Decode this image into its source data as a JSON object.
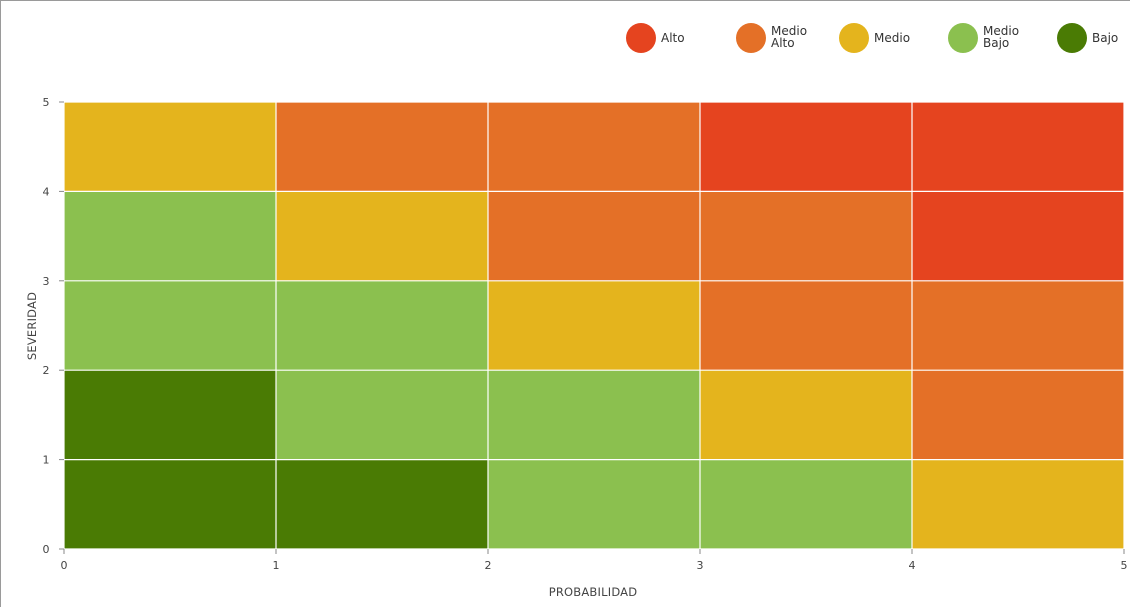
{
  "chart_data": {
    "type": "heatmap",
    "title": "",
    "xlabel": "PROBABILIDAD",
    "ylabel": "SEVERIDAD",
    "xlim": [
      0,
      5
    ],
    "ylim": [
      0,
      5
    ],
    "x_ticks": [
      "0",
      "1",
      "2",
      "3",
      "4",
      "5"
    ],
    "y_ticks": [
      "0",
      "1",
      "2",
      "3",
      "4",
      "5"
    ],
    "grid": true,
    "legend_position": "top-right",
    "categories": [
      {
        "key": "alto",
        "label": [
          "Alto"
        ],
        "color": "#e5441f"
      },
      {
        "key": "medio_alto",
        "label": [
          "Medio",
          "Alto"
        ],
        "color": "#e47027"
      },
      {
        "key": "medio",
        "label": [
          "Medio"
        ],
        "color": "#e4b41d"
      },
      {
        "key": "medio_bajo",
        "label": [
          "Medio",
          "Bajo"
        ],
        "color": "#8bc04f"
      },
      {
        "key": "bajo",
        "label": [
          "Bajo"
        ],
        "color": "#4a7b04"
      }
    ],
    "rows_top_to_bottom": [
      {
        "y_range": [
          4,
          5
        ],
        "cells": [
          "medio",
          "medio_alto",
          "medio_alto",
          "alto",
          "alto"
        ]
      },
      {
        "y_range": [
          3,
          4
        ],
        "cells": [
          "medio_bajo",
          "medio",
          "medio_alto",
          "medio_alto",
          "alto"
        ]
      },
      {
        "y_range": [
          2,
          3
        ],
        "cells": [
          "medio_bajo",
          "medio_bajo",
          "medio",
          "medio_alto",
          "medio_alto"
        ]
      },
      {
        "y_range": [
          1,
          2
        ],
        "cells": [
          "bajo",
          "medio_bajo",
          "medio_bajo",
          "medio",
          "medio_alto"
        ]
      },
      {
        "y_range": [
          0,
          1
        ],
        "cells": [
          "bajo",
          "bajo",
          "medio_bajo",
          "medio_bajo",
          "medio"
        ]
      }
    ]
  }
}
